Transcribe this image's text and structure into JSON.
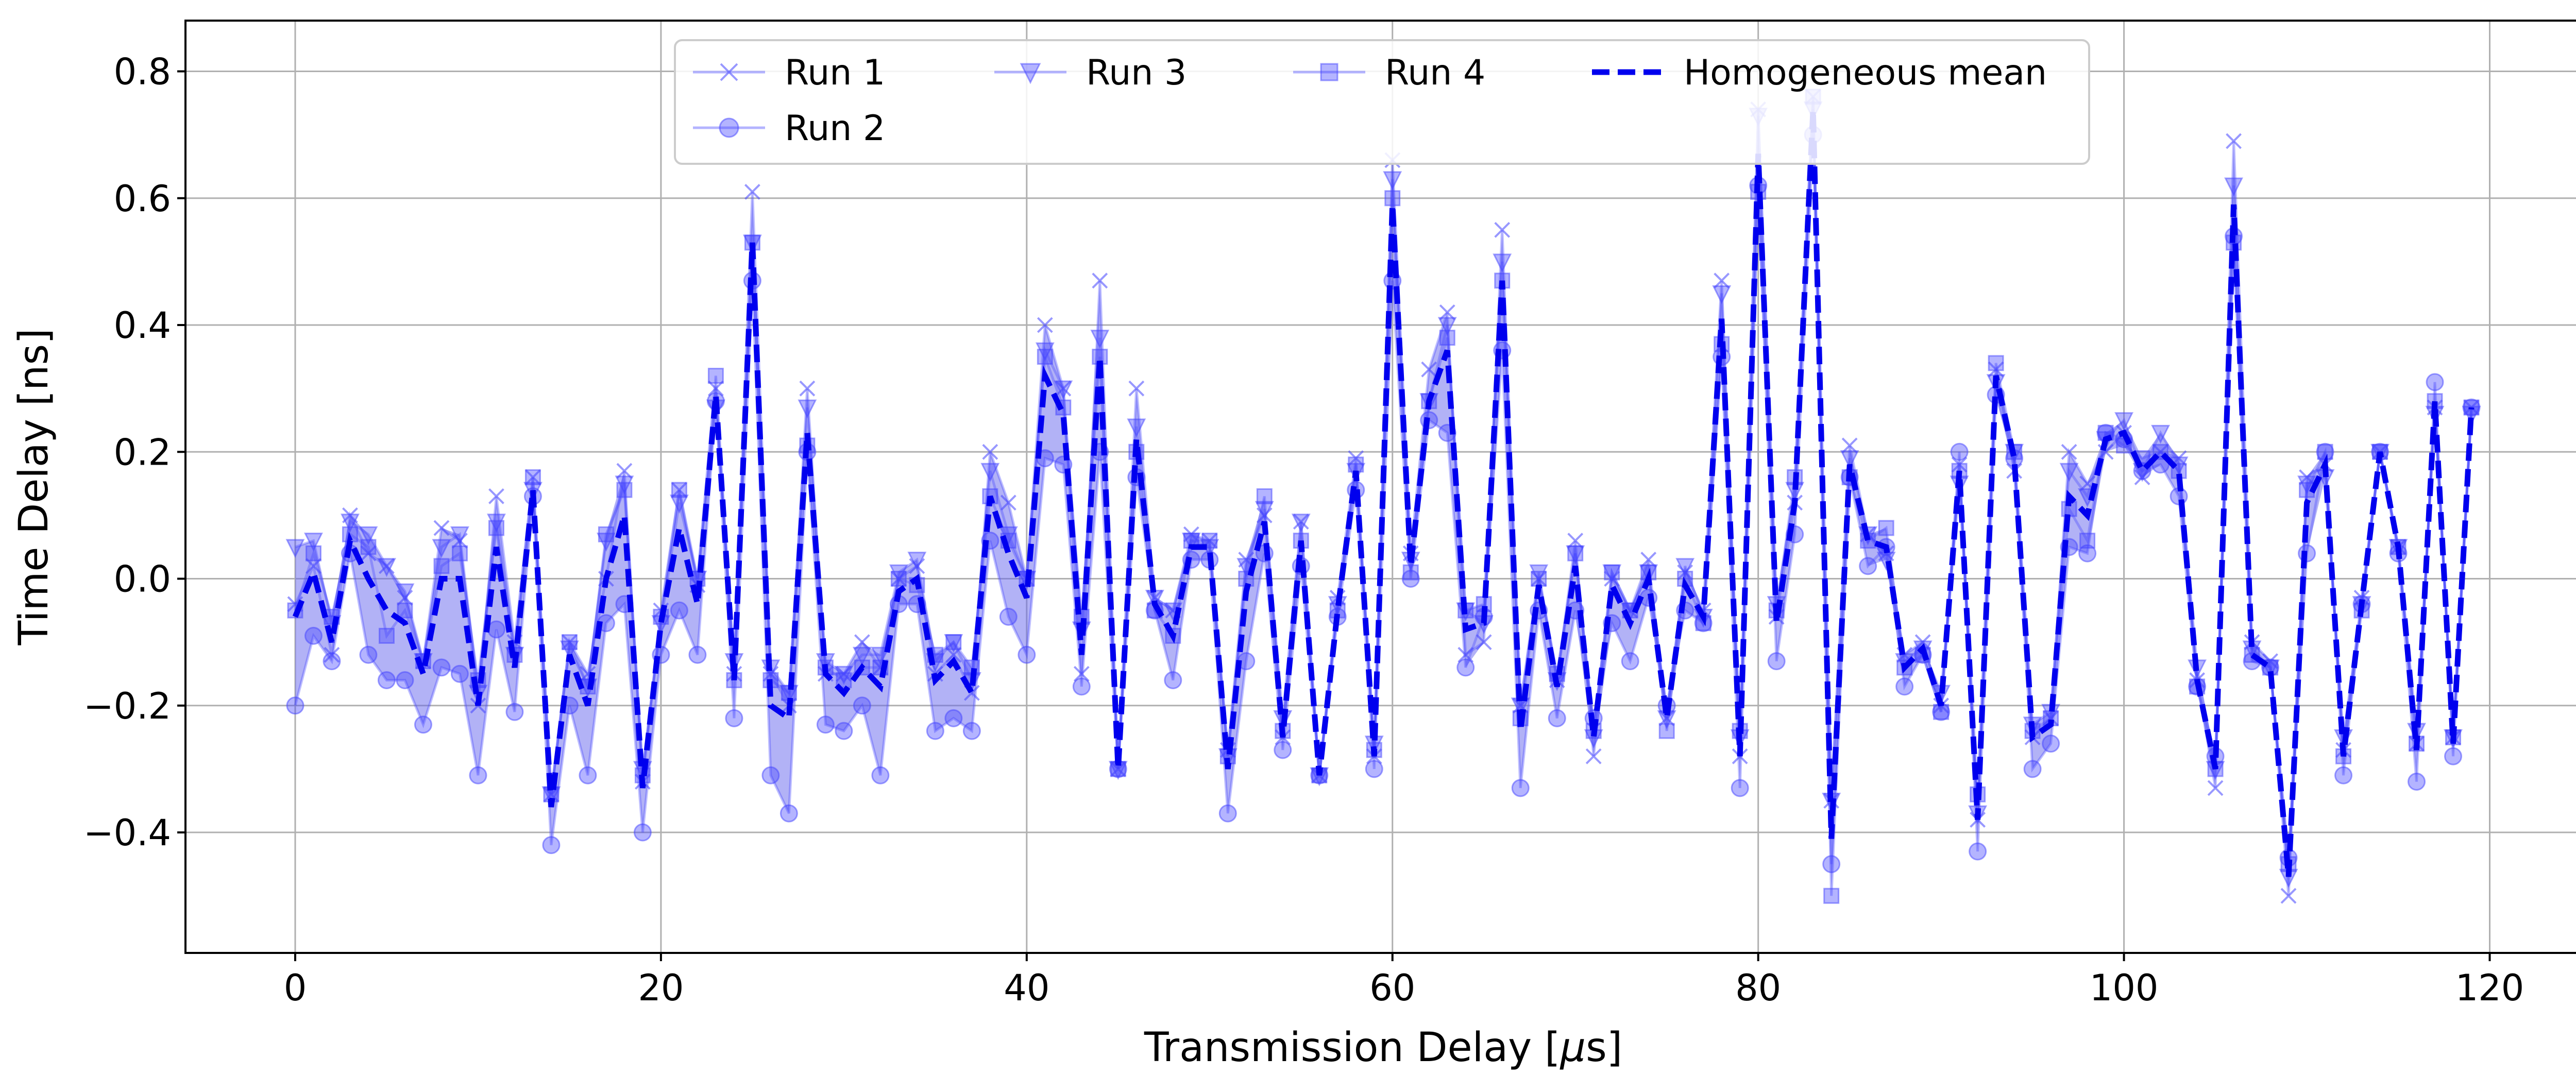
{
  "chart_data": {
    "type": "line",
    "title": "",
    "xlabel_prefix": "Transmission Delay [",
    "xlabel_mu": "μ",
    "xlabel_suffix": "s]",
    "xlabel": "Transmission Delay [μs]",
    "ylabel": "Time Delay [ns]",
    "xlim": [
      -6,
      125
    ],
    "ylim": [
      -0.59,
      0.88
    ],
    "xticks": [
      0,
      20,
      40,
      60,
      80,
      100,
      120
    ],
    "xtick_labels": [
      "0",
      "20",
      "40",
      "60",
      "80",
      "100",
      "120"
    ],
    "yticks": [
      -0.4,
      -0.2,
      0.0,
      0.2,
      0.4,
      0.6,
      0.8
    ],
    "ytick_labels": [
      "−0.4",
      "−0.2",
      "0.0",
      "0.2",
      "0.4",
      "0.6",
      "0.8"
    ],
    "grid": true,
    "legend_position": "top-center",
    "colors": {
      "runs": "#4444ff",
      "mean": "#0000ee",
      "band": "#6666ee"
    },
    "x": [
      0,
      1,
      2,
      3,
      4,
      5,
      6,
      7,
      8,
      9,
      10,
      11,
      12,
      13,
      14,
      15,
      16,
      17,
      18,
      19,
      20,
      21,
      22,
      23,
      24,
      25,
      26,
      27,
      28,
      29,
      30,
      31,
      32,
      33,
      34,
      35,
      36,
      37,
      38,
      39,
      40,
      41,
      42,
      43,
      44,
      45,
      46,
      47,
      48,
      49,
      50,
      51,
      52,
      53,
      54,
      55,
      56,
      57,
      58,
      59,
      60,
      61,
      62,
      63,
      64,
      65,
      66,
      67,
      68,
      69,
      70,
      71,
      72,
      73,
      74,
      75,
      76,
      77,
      78,
      79,
      80,
      81,
      82,
      83,
      84,
      85,
      86,
      87,
      88,
      89,
      90,
      91,
      92,
      93,
      94,
      95,
      96,
      97,
      98,
      99,
      100,
      101,
      102,
      103,
      104,
      105,
      106,
      107,
      108,
      109,
      110,
      111,
      112,
      113,
      114,
      115,
      116,
      117,
      118,
      119
    ],
    "series": [
      {
        "name": "Run 1",
        "marker": "x",
        "values": [
          -0.04,
          0.02,
          -0.12,
          0.1,
          0.04,
          0.02,
          -0.03,
          -0.13,
          0.08,
          0.06,
          -0.2,
          0.13,
          -0.1,
          0.16,
          -0.34,
          -0.1,
          -0.15,
          0.0,
          0.17,
          -0.32,
          -0.05,
          0.14,
          -0.01,
          0.3,
          -0.15,
          0.61,
          -0.15,
          -0.2,
          0.3,
          -0.15,
          -0.15,
          -0.1,
          -0.14,
          0.0,
          0.02,
          -0.15,
          -0.12,
          -0.18,
          0.2,
          0.12,
          0.0,
          0.4,
          0.3,
          -0.15,
          0.47,
          -0.3,
          0.3,
          -0.03,
          -0.05,
          0.07,
          0.06,
          -0.27,
          0.03,
          0.1,
          -0.25,
          0.09,
          -0.31,
          -0.03,
          0.19,
          -0.28,
          0.66,
          0.04,
          0.33,
          0.42,
          -0.12,
          -0.1,
          0.55,
          -0.2,
          0.0,
          -0.16,
          0.06,
          -0.28,
          0.0,
          -0.05,
          0.03,
          -0.22,
          0.01,
          -0.05,
          0.47,
          -0.28,
          0.74,
          -0.06,
          0.12,
          0.76,
          -0.35,
          0.21,
          0.07,
          0.04,
          -0.12,
          -0.1,
          -0.2,
          0.18,
          -0.38,
          0.33,
          0.17,
          -0.25,
          -0.22,
          0.2,
          0.15,
          0.2,
          0.23,
          0.16,
          0.2,
          0.19,
          -0.16,
          -0.33,
          0.69,
          -0.1,
          -0.13,
          -0.5,
          0.16,
          0.18,
          -0.27,
          -0.03,
          0.2,
          0.05,
          -0.26,
          0.27,
          -0.25,
          0.27
        ]
      },
      {
        "name": "Run 2",
        "marker": "o",
        "values": [
          -0.2,
          -0.09,
          -0.13,
          0.04,
          -0.12,
          -0.16,
          -0.16,
          -0.23,
          -0.14,
          -0.15,
          -0.31,
          -0.08,
          -0.21,
          0.13,
          -0.42,
          -0.2,
          -0.31,
          -0.07,
          -0.04,
          -0.4,
          -0.12,
          -0.05,
          -0.12,
          0.28,
          -0.22,
          0.47,
          -0.31,
          -0.37,
          0.2,
          -0.23,
          -0.24,
          -0.2,
          -0.31,
          -0.04,
          -0.04,
          -0.24,
          -0.22,
          -0.24,
          0.06,
          -0.06,
          -0.12,
          0.19,
          0.18,
          -0.17,
          0.2,
          -0.3,
          0.16,
          -0.05,
          -0.16,
          0.03,
          0.03,
          -0.37,
          -0.13,
          0.04,
          -0.27,
          0.02,
          -0.31,
          -0.06,
          0.14,
          -0.3,
          0.47,
          0.0,
          0.25,
          0.23,
          -0.14,
          -0.06,
          0.36,
          -0.33,
          -0.05,
          -0.22,
          -0.05,
          -0.22,
          -0.07,
          -0.13,
          -0.03,
          -0.2,
          -0.05,
          -0.07,
          0.35,
          -0.33,
          0.62,
          -0.13,
          0.07,
          0.7,
          -0.45,
          0.16,
          0.02,
          0.05,
          -0.17,
          -0.12,
          -0.21,
          0.2,
          -0.43,
          0.29,
          0.19,
          -0.3,
          -0.26,
          0.05,
          0.04,
          0.23,
          0.22,
          0.17,
          0.18,
          0.13,
          -0.17,
          -0.28,
          0.54,
          -0.13,
          -0.14,
          -0.44,
          0.04,
          0.2,
          -0.31,
          -0.04,
          0.2,
          0.04,
          -0.32,
          0.31,
          -0.28,
          0.27
        ]
      },
      {
        "name": "Run 3",
        "marker": "v",
        "values": [
          0.05,
          0.06,
          -0.07,
          0.09,
          0.07,
          0.02,
          -0.02,
          -0.13,
          0.05,
          0.07,
          -0.18,
          0.09,
          -0.12,
          0.14,
          -0.34,
          -0.11,
          -0.17,
          0.06,
          0.15,
          -0.3,
          -0.07,
          0.12,
          0.0,
          0.27,
          -0.13,
          0.53,
          -0.14,
          -0.18,
          0.27,
          -0.13,
          -0.15,
          -0.12,
          -0.12,
          0.01,
          0.03,
          -0.13,
          -0.1,
          -0.16,
          0.17,
          0.07,
          0.0,
          0.36,
          0.3,
          -0.08,
          0.38,
          -0.3,
          0.24,
          -0.03,
          -0.05,
          0.06,
          0.05,
          -0.28,
          0.02,
          0.11,
          -0.22,
          0.09,
          -0.31,
          -0.04,
          0.17,
          -0.26,
          0.63,
          0.03,
          0.28,
          0.4,
          -0.05,
          -0.07,
          0.5,
          -0.2,
          0.01,
          -0.16,
          0.04,
          -0.25,
          0.01,
          -0.05,
          0.01,
          -0.22,
          0.02,
          -0.06,
          0.45,
          -0.25,
          0.73,
          -0.04,
          0.14,
          0.74,
          -0.35,
          0.19,
          0.07,
          0.03,
          -0.13,
          -0.11,
          -0.18,
          0.15,
          -0.37,
          0.31,
          0.2,
          -0.23,
          -0.21,
          0.17,
          0.13,
          0.22,
          0.25,
          0.17,
          0.23,
          0.18,
          -0.14,
          -0.3,
          0.62,
          -0.11,
          -0.14,
          -0.47,
          0.15,
          0.16,
          -0.25,
          -0.04,
          0.2,
          0.05,
          -0.24,
          0.26,
          -0.25,
          0.26
        ]
      },
      {
        "name": "Run 4",
        "marker": "s",
        "values": [
          -0.05,
          0.04,
          -0.06,
          0.07,
          0.05,
          -0.09,
          -0.05,
          -0.13,
          0.02,
          0.04,
          -0.16,
          0.08,
          -0.12,
          0.16,
          -0.34,
          -0.1,
          -0.17,
          0.07,
          0.14,
          -0.31,
          -0.06,
          0.14,
          0.0,
          0.32,
          -0.16,
          0.53,
          -0.16,
          -0.18,
          0.21,
          -0.14,
          -0.16,
          -0.14,
          -0.14,
          0.0,
          -0.01,
          -0.12,
          -0.1,
          -0.14,
          0.13,
          0.06,
          0.0,
          0.35,
          0.27,
          -0.06,
          0.35,
          -0.3,
          0.2,
          -0.05,
          -0.09,
          0.06,
          0.06,
          -0.28,
          0.0,
          0.13,
          -0.24,
          0.06,
          -0.31,
          -0.05,
          0.18,
          -0.27,
          0.6,
          0.01,
          0.28,
          0.38,
          -0.05,
          -0.04,
          0.47,
          -0.22,
          0.0,
          -0.15,
          0.04,
          -0.24,
          0.01,
          -0.05,
          0.01,
          -0.24,
          0.0,
          -0.07,
          0.37,
          -0.24,
          0.61,
          -0.05,
          0.16,
          0.76,
          -0.5,
          0.16,
          0.06,
          0.08,
          -0.14,
          -0.12,
          -0.21,
          0.17,
          -0.34,
          0.34,
          0.2,
          -0.24,
          -0.22,
          0.11,
          0.06,
          0.23,
          0.21,
          0.19,
          0.2,
          0.17,
          -0.17,
          -0.3,
          0.53,
          -0.12,
          -0.14,
          -0.45,
          0.14,
          0.2,
          -0.28,
          -0.05,
          0.2,
          0.05,
          -0.26,
          0.28,
          -0.25,
          0.27
        ]
      },
      {
        "name": "Homogeneous mean",
        "marker": "none",
        "style": "dashed",
        "values": [
          -0.06,
          0.01,
          -0.1,
          0.06,
          0.0,
          -0.05,
          -0.07,
          -0.15,
          0.0,
          0.0,
          -0.2,
          0.05,
          -0.14,
          0.14,
          -0.36,
          -0.12,
          -0.2,
          0.0,
          0.1,
          -0.33,
          -0.07,
          0.08,
          -0.04,
          0.29,
          -0.16,
          0.53,
          -0.2,
          -0.22,
          0.23,
          -0.15,
          -0.18,
          -0.14,
          -0.17,
          -0.02,
          0.0,
          -0.16,
          -0.13,
          -0.18,
          0.13,
          0.04,
          -0.03,
          0.32,
          0.26,
          -0.12,
          0.35,
          -0.3,
          0.22,
          -0.04,
          -0.09,
          0.05,
          0.05,
          -0.3,
          -0.02,
          0.09,
          -0.25,
          0.06,
          -0.31,
          -0.05,
          0.17,
          -0.28,
          0.59,
          0.02,
          0.28,
          0.36,
          -0.08,
          -0.07,
          0.47,
          -0.24,
          -0.01,
          -0.17,
          0.02,
          -0.25,
          -0.01,
          -0.07,
          0.0,
          -0.22,
          -0.01,
          -0.06,
          0.41,
          -0.28,
          0.67,
          -0.07,
          0.12,
          0.74,
          -0.41,
          0.18,
          0.06,
          0.05,
          -0.14,
          -0.11,
          -0.2,
          0.17,
          -0.38,
          0.32,
          0.19,
          -0.25,
          -0.23,
          0.13,
          0.1,
          0.22,
          0.23,
          0.17,
          0.2,
          0.17,
          -0.16,
          -0.3,
          0.59,
          -0.12,
          -0.14,
          -0.47,
          0.12,
          0.18,
          -0.28,
          -0.04,
          0.2,
          0.05,
          -0.27,
          0.28,
          -0.26,
          0.27
        ]
      }
    ],
    "legend": [
      {
        "label": "Run 1",
        "marker": "x"
      },
      {
        "label": "Run 3",
        "marker": "v"
      },
      {
        "label": "Run 4",
        "marker": "s"
      },
      {
        "label": "Homogeneous mean",
        "marker": "none"
      },
      {
        "label": "Run 2",
        "marker": "o"
      }
    ]
  }
}
